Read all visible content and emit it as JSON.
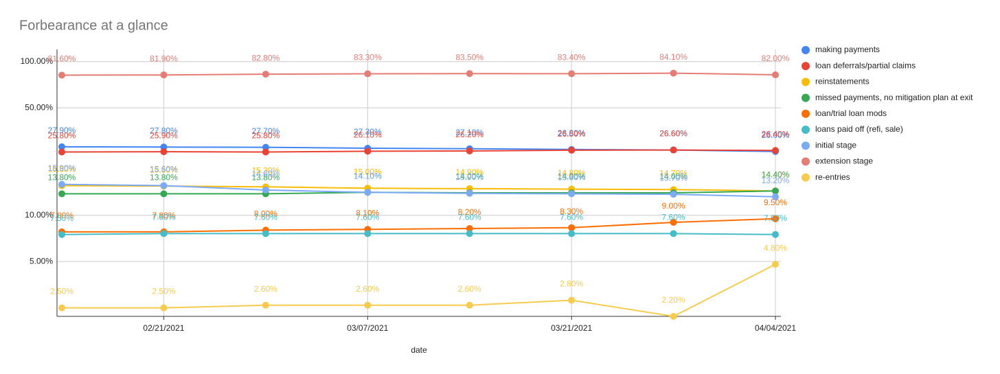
{
  "chart_data": {
    "type": "line",
    "title": "Forbearance at a glance",
    "x_label": "date",
    "categories": [
      null,
      "02/21/2021",
      null,
      "03/07/2021",
      null,
      "03/21/2021",
      null,
      "04/04/2021"
    ],
    "log_scale": true,
    "grid": true,
    "legend": "right",
    "ylim": [
      2.2,
      120
    ],
    "yticks": [
      {
        "value": 5,
        "label": "5.00%"
      },
      {
        "value": 10,
        "label": "10.00%"
      },
      {
        "value": 50,
        "label": "50.00%"
      },
      {
        "value": 100,
        "label": "100.00%"
      }
    ],
    "series": [
      {
        "name": "making payments",
        "color": "#4285f4",
        "values": [
          27.9,
          27.8,
          27.7,
          27.3,
          27.1,
          26.8,
          26.6,
          26.0
        ],
        "value_labels": [
          "27.90%",
          "27.80%",
          "27.70%",
          "27.30%",
          "27.10%",
          "26.80%",
          "26.60%",
          "26.00%"
        ]
      },
      {
        "name": "loan deferrals/partial claims",
        "color": "#ea4335",
        "values": [
          25.8,
          25.9,
          25.8,
          26.1,
          26.2,
          26.5,
          26.6,
          26.4
        ],
        "value_labels": [
          "25.80%",
          "25.90%",
          "25.80%",
          "26.10%",
          "26.20%",
          "26.50%",
          "26.60%",
          "26.40%"
        ]
      },
      {
        "name": "reinstatements",
        "color": "#fbbc04",
        "values": [
          15.6,
          15.5,
          15.3,
          15.0,
          14.9,
          14.8,
          14.7,
          14.4
        ],
        "value_labels": [
          "15.60%",
          "15.50%",
          "15.30%",
          "15.00%",
          "14.90%",
          "14.80%",
          "14.70%",
          "14.40%"
        ]
      },
      {
        "name": "missed payments, no mitigation plan at exit",
        "color": "#34a853",
        "values": [
          13.8,
          13.8,
          13.8,
          14.1,
          14.0,
          14.0,
          14.0,
          14.4
        ],
        "value_labels": [
          "13.80%",
          "13.80%",
          "13.80%",
          "14.10%",
          "14.00%",
          "14.00%",
          "14.00%",
          "14.40%"
        ]
      },
      {
        "name": "loan/trial loan mods",
        "color": "#ff6d01",
        "values": [
          7.8,
          7.8,
          8.0,
          8.1,
          8.2,
          8.3,
          9.0,
          9.5
        ],
        "value_labels": [
          "7.80%",
          "7.80%",
          "8.00%",
          "8.10%",
          "8.20%",
          "8.30%",
          "9.00%",
          "9.50%"
        ]
      },
      {
        "name": "loans paid off (refi, sale)",
        "color": "#46bdc6",
        "values": [
          7.5,
          7.6,
          7.6,
          7.6,
          7.6,
          7.6,
          7.6,
          7.5
        ],
        "value_labels": [
          "7.50%",
          "7.60%",
          "7.60%",
          "7.60%",
          "7.60%",
          "7.60%",
          "7.60%",
          "7.50%"
        ]
      },
      {
        "name": "initial stage",
        "color": "#7baaf7",
        "values": [
          15.9,
          15.6,
          14.6,
          14.1,
          13.9,
          13.8,
          13.7,
          13.2
        ],
        "value_labels": [
          "15.90%",
          "15.60%",
          "14.60%",
          "14.10%",
          "13.90%",
          "13.80%",
          "13.70%",
          "13.20%"
        ]
      },
      {
        "name": "extension stage",
        "color": "#e67c73",
        "values": [
          81.6,
          81.9,
          82.8,
          83.3,
          83.5,
          83.4,
          84.1,
          82.0
        ],
        "value_labels": [
          "81.60%",
          "81.90%",
          "82.80%",
          "83.30%",
          "83.50%",
          "83.40%",
          "84.10%",
          "82.00%"
        ]
      },
      {
        "name": "re-entries",
        "color": "#f7cb4d",
        "values": [
          2.5,
          2.5,
          2.6,
          2.6,
          2.6,
          2.8,
          2.2,
          4.8
        ],
        "value_labels": [
          "2.50%",
          "2.50%",
          "2.60%",
          "2.60%",
          "2.60%",
          "2.80%",
          "2.20%",
          "4.80%"
        ]
      }
    ]
  }
}
